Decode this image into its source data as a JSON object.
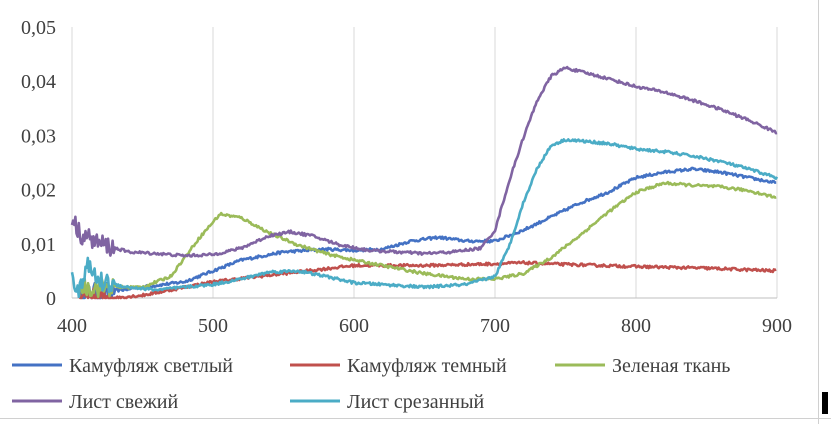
{
  "chart_data": {
    "type": "line",
    "xlim": [
      400,
      900
    ],
    "ylim": [
      0,
      0.05
    ],
    "x_ticks": [
      "400",
      "500",
      "600",
      "700",
      "800",
      "900"
    ],
    "x_tick_values": [
      400,
      500,
      600,
      700,
      800,
      900
    ],
    "y_ticks": [
      "0",
      "0,01",
      "0,02",
      "0,03",
      "0,04",
      "0,05"
    ],
    "y_tick_values": [
      0,
      0.01,
      0.02,
      0.03,
      0.04,
      0.05
    ],
    "grid": "vertical",
    "legend_position": "bottom",
    "series": [
      {
        "name": "Камуфляж светлый",
        "color": "#4472C4",
        "x": [
          405,
          420,
          450,
          480,
          500,
          520,
          550,
          580,
          600,
          620,
          640,
          660,
          680,
          700,
          720,
          740,
          760,
          780,
          800,
          820,
          840,
          860,
          880,
          900
        ],
        "y": [
          0.001,
          0.001,
          0.002,
          0.003,
          0.005,
          0.007,
          0.0085,
          0.009,
          0.0088,
          0.009,
          0.0105,
          0.0112,
          0.0105,
          0.0105,
          0.0125,
          0.015,
          0.0175,
          0.0195,
          0.0222,
          0.0232,
          0.0238,
          0.0232,
          0.0222,
          0.0212
        ]
      },
      {
        "name": "Камуфляж темный",
        "color": "#C0504D",
        "x": [
          405,
          430,
          450,
          480,
          500,
          550,
          600,
          650,
          700,
          720,
          750,
          800,
          850,
          900
        ],
        "y": [
          0.0,
          0.0,
          0.0005,
          0.002,
          0.003,
          0.0045,
          0.006,
          0.006,
          0.0063,
          0.0065,
          0.0062,
          0.0058,
          0.0055,
          0.005
        ]
      },
      {
        "name": "Зеленая ткань",
        "color": "#9BBB59",
        "x": [
          405,
          450,
          470,
          490,
          505,
          520,
          540,
          560,
          580,
          600,
          620,
          650,
          680,
          700,
          720,
          740,
          760,
          780,
          800,
          820,
          840,
          860,
          880,
          900
        ],
        "y": [
          0.002,
          0.002,
          0.004,
          0.011,
          0.0155,
          0.0148,
          0.012,
          0.0098,
          0.0082,
          0.007,
          0.006,
          0.0045,
          0.0035,
          0.0035,
          0.0045,
          0.0075,
          0.0115,
          0.0158,
          0.0195,
          0.0212,
          0.0208,
          0.0205,
          0.0198,
          0.0185
        ]
      },
      {
        "name": "Лист свежий",
        "color": "#8064A2",
        "x": [
          400,
          405,
          420,
          440,
          460,
          480,
          500,
          520,
          540,
          555,
          570,
          590,
          610,
          630,
          650,
          670,
          690,
          700,
          710,
          720,
          730,
          740,
          750,
          760,
          780,
          800,
          820,
          840,
          860,
          880,
          900
        ],
        "y": [
          0.015,
          0.012,
          0.01,
          0.0085,
          0.0082,
          0.0078,
          0.008,
          0.0092,
          0.0115,
          0.0122,
          0.0115,
          0.0098,
          0.0088,
          0.0085,
          0.0082,
          0.0085,
          0.0092,
          0.0125,
          0.0215,
          0.0295,
          0.0365,
          0.041,
          0.0425,
          0.0418,
          0.0405,
          0.039,
          0.038,
          0.0365,
          0.0348,
          0.0328,
          0.0305
        ]
      },
      {
        "name": "Лист срезанный",
        "color": "#4BACC6",
        "x": [
          400,
          405,
          410,
          420,
          440,
          460,
          480,
          500,
          520,
          540,
          560,
          580,
          600,
          620,
          650,
          680,
          700,
          710,
          720,
          730,
          740,
          750,
          760,
          780,
          800,
          820,
          840,
          860,
          880,
          900
        ],
        "y": [
          0.005,
          0.0005,
          0.006,
          0.003,
          0.002,
          0.0015,
          0.002,
          0.0025,
          0.0035,
          0.0048,
          0.005,
          0.004,
          0.0028,
          0.0025,
          0.002,
          0.0025,
          0.004,
          0.0095,
          0.0175,
          0.024,
          0.0282,
          0.0292,
          0.029,
          0.0285,
          0.0275,
          0.027,
          0.0262,
          0.0252,
          0.0238,
          0.0222
        ]
      }
    ]
  }
}
